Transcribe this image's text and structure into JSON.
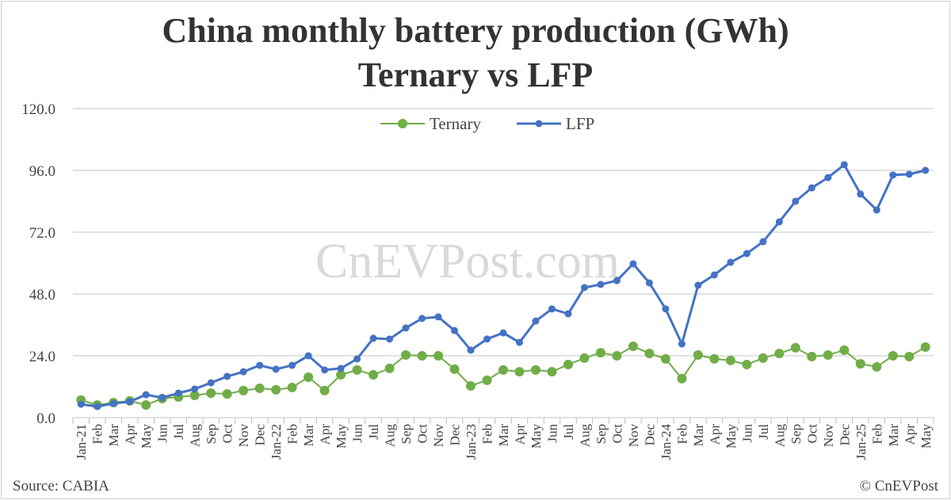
{
  "chart_data": {
    "type": "line",
    "title": "China monthly battery production (GWh)",
    "subtitle": "Ternary vs LFP",
    "xlabel": "",
    "ylabel": "",
    "ylim": [
      0,
      120
    ],
    "yticks": [
      "0.0",
      "24.0",
      "48.0",
      "72.0",
      "96.0",
      "120.0"
    ],
    "grid": true,
    "legend_position": "top-center",
    "categories": [
      "Jan-21",
      "Feb",
      "Mar",
      "Apr",
      "May",
      "Jun",
      "Jul",
      "Aug",
      "Sep",
      "Oct",
      "Nov",
      "Dec",
      "Jan-22",
      "Feb",
      "Mar",
      "Apr",
      "May",
      "Jun",
      "Jul",
      "Aug",
      "Sep",
      "Oct",
      "Nov",
      "Dec",
      "Jan-23",
      "Feb",
      "Mar",
      "Apr",
      "May",
      "Jun",
      "Jul",
      "Aug",
      "Sep",
      "Oct",
      "Nov",
      "Dec",
      "Jan-24",
      "Feb",
      "Mar",
      "Apr",
      "May",
      "Jun",
      "Jul",
      "Aug",
      "Sep",
      "Oct",
      "Nov",
      "Dec",
      "Jan-25",
      "Feb",
      "Mar",
      "Apr",
      "May"
    ],
    "series": [
      {
        "name": "Ternary",
        "color": "#70ad47",
        "values": [
          6.8,
          4.9,
          5.8,
          6.5,
          4.9,
          7.4,
          8.0,
          8.6,
          9.5,
          9.2,
          10.5,
          11.4,
          10.8,
          11.7,
          15.7,
          10.5,
          16.6,
          18.5,
          16.6,
          19.1,
          24.3,
          24.0,
          24.0,
          18.8,
          12.3,
          14.5,
          18.5,
          17.8,
          18.5,
          17.8,
          20.6,
          23.1,
          25.2,
          24.0,
          27.7,
          24.9,
          22.8,
          15.1,
          24.3,
          22.8,
          22.2,
          20.6,
          23.1,
          24.9,
          27.1,
          23.7,
          24.3,
          26.2,
          20.9,
          19.7,
          24.0,
          23.7,
          27.4
        ]
      },
      {
        "name": "LFP",
        "color": "#4472c4",
        "values": [
          5.2,
          4.3,
          5.5,
          6.2,
          8.9,
          7.7,
          9.5,
          11.1,
          13.5,
          16.0,
          17.8,
          20.3,
          18.8,
          20.3,
          24.0,
          18.5,
          19.1,
          22.8,
          30.8,
          30.5,
          34.8,
          38.5,
          39.1,
          33.8,
          26.2,
          30.5,
          32.9,
          29.2,
          37.5,
          42.2,
          40.3,
          50.5,
          51.7,
          53.2,
          59.7,
          52.3,
          42.2,
          28.6,
          51.4,
          55.4,
          60.3,
          63.7,
          68.3,
          76.0,
          84.0,
          89.2,
          93.2,
          98.2,
          86.8,
          80.6,
          94.2,
          94.5,
          96.0
        ]
      }
    ]
  },
  "watermark": "CnEVPost.com",
  "source": "Source: CABIA",
  "copyright": "© CnEVPost"
}
